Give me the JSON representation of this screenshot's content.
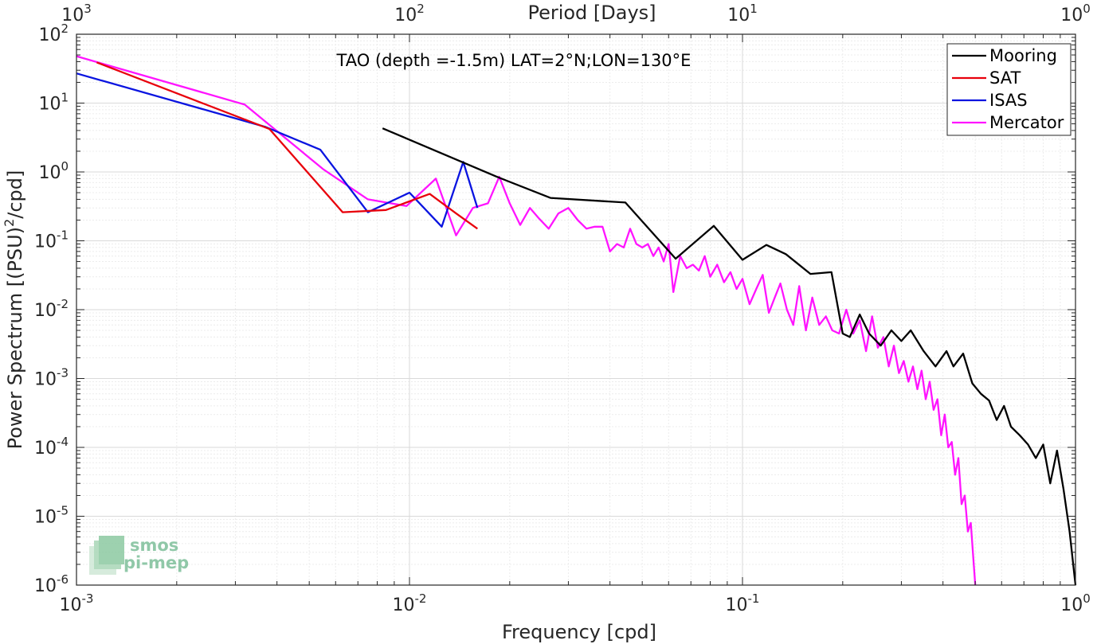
{
  "chart_data": {
    "type": "line",
    "title": "TAO (depth =-1.5m) LAT=2°N;LON=130°E",
    "xlabel": "Frequency [cpd]",
    "ylabel_main": "Power Spectrum [(PSU)",
    "ylabel_sup": "2",
    "ylabel_tail": "/cpd]",
    "x2label": "Period [Days]",
    "xscale": "log",
    "yscale": "log",
    "xlim": [
      0.001,
      1
    ],
    "ylim": [
      1e-06,
      100
    ],
    "grid": true,
    "legend_position": "top-right",
    "x_ticks": [
      {
        "value": 0.001,
        "base": "10",
        "exp": "-3"
      },
      {
        "value": 0.01,
        "base": "10",
        "exp": "-2"
      },
      {
        "value": 0.1,
        "base": "10",
        "exp": "-1"
      },
      {
        "value": 1,
        "base": "10",
        "exp": "0"
      }
    ],
    "y_ticks": [
      {
        "value": 1e-06,
        "base": "10",
        "exp": "-6"
      },
      {
        "value": 1e-05,
        "base": "10",
        "exp": "-5"
      },
      {
        "value": 0.0001,
        "base": "10",
        "exp": "-4"
      },
      {
        "value": 0.001,
        "base": "10",
        "exp": "-3"
      },
      {
        "value": 0.01,
        "base": "10",
        "exp": "-2"
      },
      {
        "value": 0.1,
        "base": "10",
        "exp": "-1"
      },
      {
        "value": 1,
        "base": "10",
        "exp": "0"
      },
      {
        "value": 10,
        "base": "10",
        "exp": "1"
      },
      {
        "value": 100,
        "base": "10",
        "exp": "2"
      }
    ],
    "x2_ticks": [
      {
        "value": 0.001,
        "base": "10",
        "exp": "3"
      },
      {
        "value": 0.01,
        "base": "10",
        "exp": "2"
      },
      {
        "value": 0.1,
        "base": "10",
        "exp": "1"
      },
      {
        "value": 1,
        "base": "10",
        "exp": "0"
      }
    ],
    "series": [
      {
        "name": "Mooring",
        "color": "#000000",
        "x": [
          0.0083,
          0.0183,
          0.0265,
          0.0445,
          0.063,
          0.082,
          0.1,
          0.118,
          0.135,
          0.16,
          0.185,
          0.2,
          0.21,
          0.225,
          0.24,
          0.26,
          0.28,
          0.3,
          0.32,
          0.35,
          0.38,
          0.41,
          0.43,
          0.46,
          0.49,
          0.52,
          0.55,
          0.58,
          0.61,
          0.64,
          0.68,
          0.72,
          0.76,
          0.8,
          0.84,
          0.88,
          0.92,
          0.96,
          1.0
        ],
        "y": [
          4.3,
          0.85,
          0.42,
          0.36,
          0.055,
          0.165,
          0.053,
          0.087,
          0.064,
          0.033,
          0.035,
          0.0045,
          0.004,
          0.0085,
          0.0045,
          0.003,
          0.005,
          0.0035,
          0.005,
          0.0025,
          0.0015,
          0.0025,
          0.0015,
          0.0023,
          0.00085,
          0.0006,
          0.00048,
          0.00025,
          0.0004,
          0.0002,
          0.00015,
          0.00011,
          7e-05,
          0.00011,
          3e-05,
          9e-05,
          2.5e-05,
          6e-06,
          1e-06
        ]
      },
      {
        "name": "SAT",
        "color": "#e8000b",
        "x": [
          0.00115,
          0.0038,
          0.0063,
          0.0085,
          0.0115,
          0.0138,
          0.016
        ],
        "y": [
          39,
          4.2,
          0.26,
          0.28,
          0.48,
          0.25,
          0.15
        ]
      },
      {
        "name": "ISAS",
        "color": "#0a14e0",
        "x": [
          0.001,
          0.0037,
          0.0054,
          0.0075,
          0.01,
          0.0125,
          0.0145,
          0.016
        ],
        "y": [
          27,
          4.5,
          2.1,
          0.26,
          0.5,
          0.16,
          1.4,
          0.3
        ]
      },
      {
        "name": "Mercator",
        "color": "#ff14ff",
        "x": [
          0.001,
          0.0032,
          0.0055,
          0.0075,
          0.0098,
          0.012,
          0.0138,
          0.0155,
          0.0172,
          0.0186,
          0.02,
          0.0215,
          0.023,
          0.0245,
          0.0262,
          0.028,
          0.03,
          0.032,
          0.034,
          0.036,
          0.038,
          0.04,
          0.042,
          0.044,
          0.046,
          0.048,
          0.05,
          0.052,
          0.054,
          0.056,
          0.058,
          0.06,
          0.062,
          0.065,
          0.068,
          0.071,
          0.074,
          0.077,
          0.08,
          0.084,
          0.088,
          0.092,
          0.096,
          0.1,
          0.105,
          0.11,
          0.115,
          0.12,
          0.125,
          0.13,
          0.136,
          0.142,
          0.148,
          0.155,
          0.162,
          0.17,
          0.178,
          0.186,
          0.195,
          0.205,
          0.215,
          0.225,
          0.235,
          0.245,
          0.255,
          0.265,
          0.275,
          0.285,
          0.295,
          0.305,
          0.315,
          0.325,
          0.335,
          0.345,
          0.355,
          0.365,
          0.375,
          0.385,
          0.395,
          0.405,
          0.415,
          0.425,
          0.435,
          0.445,
          0.455,
          0.465,
          0.475,
          0.485,
          0.495,
          0.5
        ],
        "y": [
          48,
          9.5,
          1.1,
          0.4,
          0.32,
          0.8,
          0.12,
          0.3,
          0.35,
          0.85,
          0.35,
          0.17,
          0.3,
          0.21,
          0.15,
          0.25,
          0.3,
          0.2,
          0.15,
          0.16,
          0.16,
          0.07,
          0.09,
          0.08,
          0.15,
          0.09,
          0.08,
          0.09,
          0.06,
          0.08,
          0.05,
          0.09,
          0.018,
          0.06,
          0.04,
          0.045,
          0.037,
          0.06,
          0.03,
          0.045,
          0.025,
          0.035,
          0.02,
          0.028,
          0.012,
          0.02,
          0.032,
          0.009,
          0.015,
          0.024,
          0.01,
          0.006,
          0.022,
          0.005,
          0.015,
          0.006,
          0.008,
          0.005,
          0.0045,
          0.01,
          0.0045,
          0.007,
          0.0025,
          0.008,
          0.0028,
          0.004,
          0.0015,
          0.003,
          0.0012,
          0.0018,
          0.0009,
          0.0015,
          0.0007,
          0.0013,
          0.0005,
          0.0009,
          0.00035,
          0.0005,
          0.00015,
          0.0003,
          0.0001,
          0.00012,
          4e-05,
          7e-05,
          1.5e-05,
          2e-05,
          6e-06,
          8e-06,
          2e-06,
          1e-06
        ]
      }
    ]
  },
  "logo": {
    "line1": "smos",
    "line2": "pi-mep"
  }
}
